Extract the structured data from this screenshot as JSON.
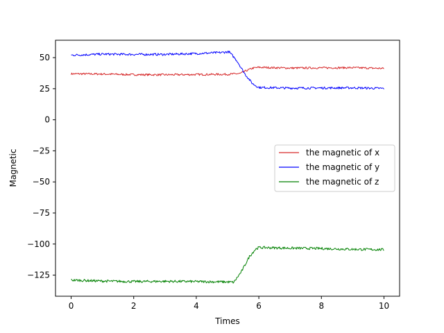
{
  "chart_data": {
    "type": "line",
    "title": "",
    "xlabel": "Times",
    "ylabel": "Magnetic",
    "xlim": [
      -0.5,
      10.5
    ],
    "ylim": [
      -142,
      64
    ],
    "xticks": [
      0,
      2,
      4,
      6,
      8,
      10
    ],
    "yticks": [
      50,
      25,
      0,
      -25,
      -50,
      -75,
      -100,
      -125
    ],
    "grid": false,
    "legend": {
      "position": "center-right"
    },
    "series": [
      {
        "name": "the magnetic of x",
        "color": "#d62728",
        "points": [
          [
            0,
            37
          ],
          [
            1,
            36.8
          ],
          [
            2,
            36.3
          ],
          [
            3,
            36.2
          ],
          [
            4,
            36.4
          ],
          [
            5,
            36.6
          ],
          [
            5.4,
            37.2
          ],
          [
            5.6,
            39.5
          ],
          [
            5.8,
            41.5
          ],
          [
            6,
            42.2
          ],
          [
            7,
            41.6
          ],
          [
            8,
            41.8
          ],
          [
            9,
            41.9
          ],
          [
            10,
            41.3
          ]
        ],
        "noise": 0.8
      },
      {
        "name": "the magnetic of y",
        "color": "#0000ff",
        "points": [
          [
            0,
            52
          ],
          [
            1,
            52.8
          ],
          [
            2,
            52.6
          ],
          [
            3,
            52.6
          ],
          [
            4,
            53.3
          ],
          [
            4.8,
            54.1
          ],
          [
            5.05,
            54.7
          ],
          [
            5.3,
            47.5
          ],
          [
            5.55,
            37
          ],
          [
            5.8,
            29
          ],
          [
            6,
            26
          ],
          [
            7,
            25.5
          ],
          [
            8,
            25.6
          ],
          [
            9,
            25.7
          ],
          [
            10,
            25.2
          ]
        ],
        "noise": 0.9
      },
      {
        "name": "the magnetic of z",
        "color": "#008000",
        "points": [
          [
            0,
            -129
          ],
          [
            1,
            -129.8
          ],
          [
            2,
            -130.2
          ],
          [
            3,
            -130
          ],
          [
            4,
            -130.2
          ],
          [
            5,
            -130.5
          ],
          [
            5.2,
            -130.8
          ],
          [
            5.45,
            -122
          ],
          [
            5.7,
            -110
          ],
          [
            5.9,
            -104
          ],
          [
            6,
            -102.8
          ],
          [
            7,
            -103.3
          ],
          [
            8,
            -103.6
          ],
          [
            9,
            -104.2
          ],
          [
            10,
            -104.5
          ]
        ],
        "noise": 1.0
      }
    ]
  }
}
